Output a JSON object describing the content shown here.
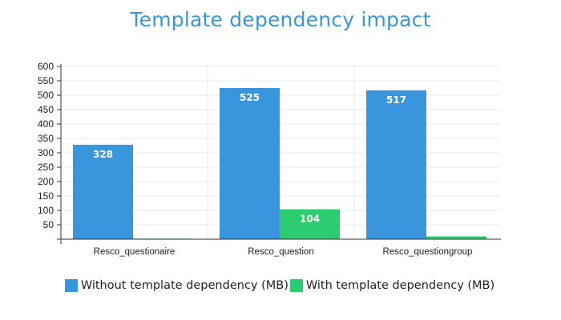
{
  "chart_data": {
    "type": "bar",
    "title": "Template dependency impact",
    "categories": [
      "Resco_questionaire",
      "Resco_question",
      "Resco_questiongroup"
    ],
    "series": [
      {
        "name": "Without template dependency (MB)",
        "values": [
          328,
          525,
          517
        ],
        "labels": [
          "328",
          "525",
          "517"
        ],
        "color": "#3a96dc"
      },
      {
        "name": "With template dependency (MB)",
        "values": [
          2,
          104,
          10
        ],
        "labels": [
          "",
          "104",
          ""
        ],
        "color": "#2ecc71"
      }
    ],
    "ylim": [
      0,
      600
    ],
    "yticks": [
      "600",
      "550",
      "500",
      "450",
      "400",
      "350",
      "300",
      "250",
      "200",
      "150",
      "100",
      "50"
    ],
    "grid": true,
    "legend": "bottom"
  }
}
